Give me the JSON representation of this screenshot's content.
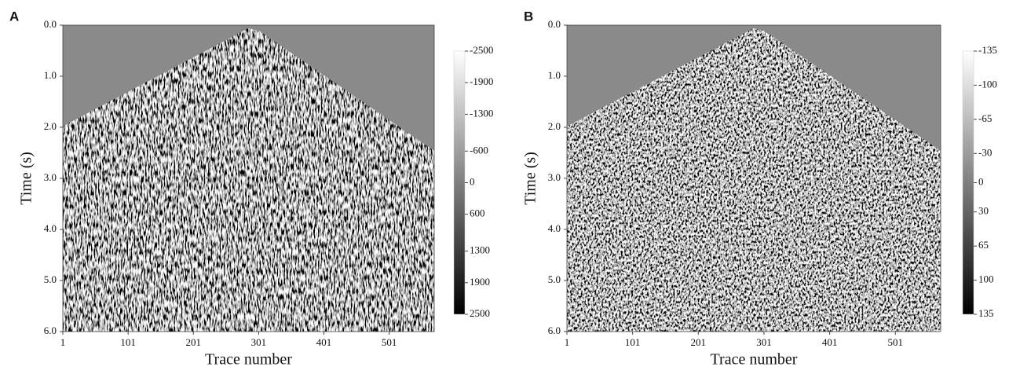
{
  "chart_data": [
    {
      "type": "image",
      "panel_label": "A",
      "x_label": "Trace number",
      "y_label": "Time (s)",
      "xlim": [
        1,
        570
      ],
      "xticks": [
        1,
        101,
        201,
        301,
        401,
        501
      ],
      "ylim": [
        0,
        6
      ],
      "yticks": [
        {
          "value": 0,
          "label": "0.0"
        },
        {
          "value": 1,
          "label": "1.0"
        },
        {
          "value": 2,
          "label": "2.0"
        },
        {
          "value": 3,
          "label": "3.0"
        },
        {
          "value": 4,
          "label": "4.0"
        },
        {
          "value": 5,
          "label": "5.0"
        },
        {
          "value": 6,
          "label": "6.0"
        }
      ],
      "clim": [
        -2500,
        2500
      ],
      "cticks": [
        -2500,
        -1900,
        -1300,
        -600,
        0,
        600,
        1300,
        1900,
        2500
      ]
    },
    {
      "type": "image",
      "panel_label": "B",
      "x_label": "Trace number",
      "y_label": "Time (s)",
      "xlim": [
        1,
        570
      ],
      "xticks": [
        1,
        101,
        201,
        301,
        401,
        501
      ],
      "ylim": [
        0,
        6
      ],
      "yticks": [
        {
          "value": 0,
          "label": "0.0"
        },
        {
          "value": 1,
          "label": "1.0"
        },
        {
          "value": 2,
          "label": "2.0"
        },
        {
          "value": 3,
          "label": "3.0"
        },
        {
          "value": 4,
          "label": "4.0"
        },
        {
          "value": 5,
          "label": "5.0"
        },
        {
          "value": 6,
          "label": "6.0"
        }
      ],
      "clim": [
        -135,
        135
      ],
      "cticks": [
        -135,
        -100,
        -65,
        -30,
        0,
        30,
        65,
        100,
        135
      ]
    }
  ]
}
